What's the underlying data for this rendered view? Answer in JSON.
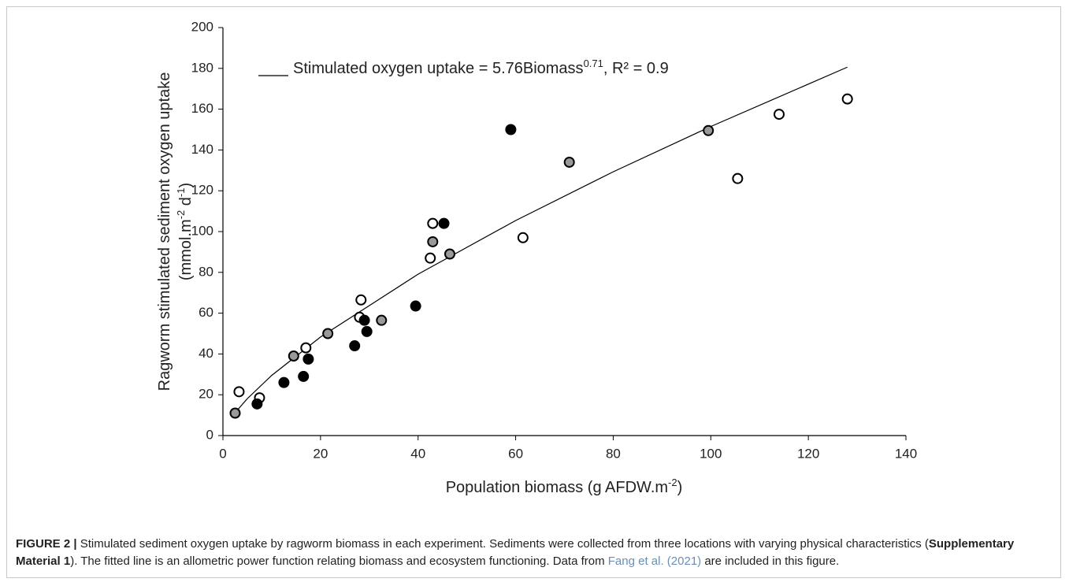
{
  "chart_data": {
    "type": "scatter",
    "annotation": {
      "text": "Stimulated oxygen uptake = 5.76Biomass",
      "superscript": "0.71",
      "suffix": ", R² = 0.9"
    },
    "x_label": {
      "text": "Population biomass (g AFDW.m",
      "superscript": "-2",
      "suffix": ")"
    },
    "y_label": {
      "line1": "Ragworm stimulated sediment oxygen uptake",
      "line2": "(mmol.m",
      "superscript1": "-2",
      "middle": " d",
      "superscript2": "-1",
      "suffix": ")"
    },
    "xlim": [
      0,
      140
    ],
    "xticks": [
      0,
      20,
      40,
      60,
      80,
      100,
      120,
      140
    ],
    "ylim": [
      0,
      200
    ],
    "yticks": [
      0,
      20,
      40,
      60,
      80,
      100,
      120,
      140,
      160,
      180,
      200
    ],
    "series": [
      {
        "color": "#ffffff",
        "x": [
          3.3,
          7.5,
          17,
          28,
          28.3,
          42.5,
          43,
          61.5,
          105.5,
          114,
          128
        ],
        "values": [
          21.5,
          18.5,
          43,
          58,
          66.5,
          87,
          104,
          97,
          126,
          157.5,
          165
        ]
      },
      {
        "color": "#999999",
        "x": [
          2.5,
          14.5,
          21.5,
          32.5,
          43,
          46.5,
          71,
          99.5
        ],
        "values": [
          11,
          39,
          50,
          56.5,
          95,
          89,
          134,
          149.5
        ]
      },
      {
        "color": "#000000",
        "x": [
          7,
          12.5,
          16.5,
          17.5,
          27,
          29,
          29.5,
          39.5,
          45.3,
          59
        ],
        "values": [
          15.5,
          26,
          29,
          37.5,
          44,
          56.5,
          51,
          63.5,
          104,
          150
        ]
      }
    ],
    "fit": {
      "color": "#000000",
      "x": [
        3,
        5,
        10,
        20,
        40,
        60,
        80,
        100,
        128
      ],
      "values": [
        12.6,
        18.1,
        29.5,
        48.3,
        79.1,
        105.4,
        129.3,
        151.5,
        180.6
      ]
    }
  },
  "caption": {
    "label": "FIGURE 2 |",
    "text1": " Stimulated sediment oxygen uptake by ragworm biomass in each experiment. Sediments were collected from three locations with varying physical characteristics (",
    "bold": "Supplementary Material 1",
    "text2": "). The fitted line is an allometric power function relating biomass and ecosystem functioning. Data from ",
    "link": "Fang et al. (2021)",
    "text3": " are included in this figure."
  }
}
